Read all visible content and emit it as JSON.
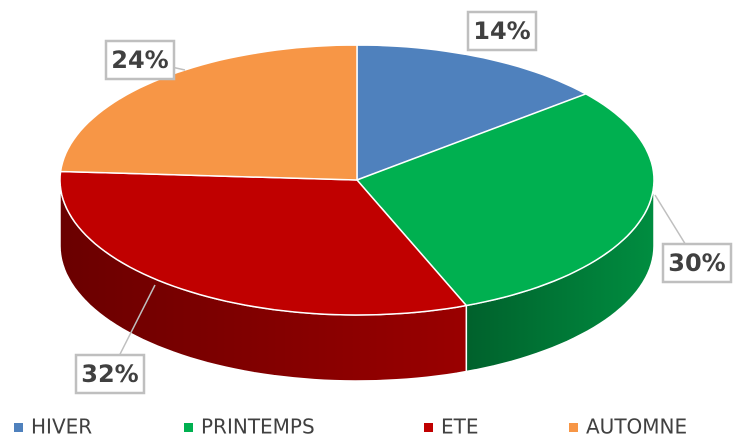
{
  "chart_data": {
    "type": "pie",
    "categories": [
      "HIVER",
      "PRINTEMPS",
      "ETE",
      "AUTOMNE"
    ],
    "values": [
      14,
      30,
      32,
      24
    ],
    "value_labels": [
      "14%",
      "30%",
      "32%",
      "24%"
    ],
    "colors": [
      "#4f81bd",
      "#00b050",
      "#c00000",
      "#f79646"
    ],
    "legend": "bottom"
  }
}
